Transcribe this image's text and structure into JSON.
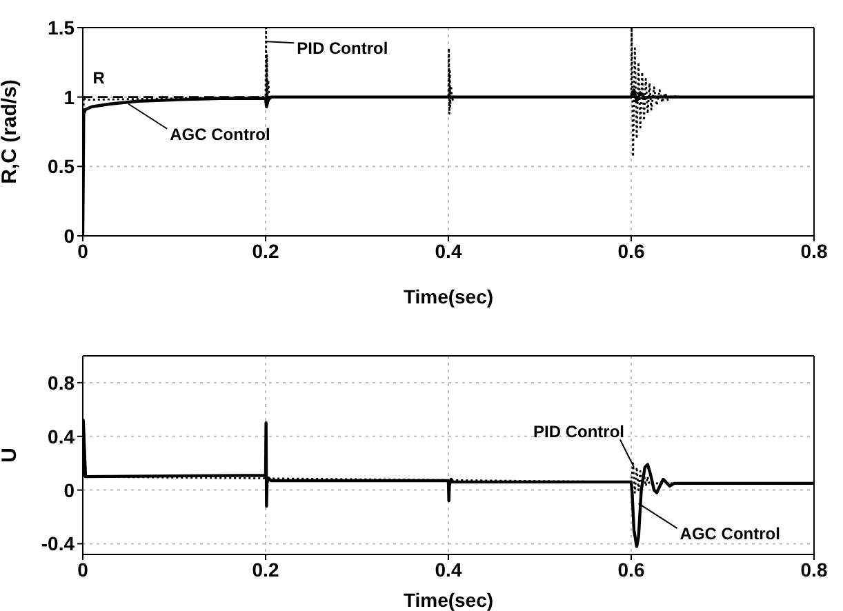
{
  "chart_data": [
    {
      "type": "line",
      "xlabel": "Time(sec)",
      "ylabel": "R,C (rad/s)",
      "xlim": [
        0,
        0.8
      ],
      "ylim": [
        0,
        1.5
      ],
      "xticks": [
        0,
        0.2,
        0.4,
        0.6,
        0.8
      ],
      "yticks": [
        0,
        0.5,
        1,
        1.5
      ],
      "grid": true,
      "marker": "none",
      "annotations": [
        {
          "text": "R",
          "x": 0.02,
          "y": 1.0
        },
        {
          "text": "PID Control",
          "x": 0.201,
          "y": 1.4
        },
        {
          "text": "AGC Control",
          "x": 0.05,
          "y": 0.95
        }
      ],
      "series": [
        {
          "color": "#000000",
          "line_style": "dashed",
          "x": [
            0,
            0.8
          ],
          "values": [
            1,
            1
          ]
        },
        {
          "color": "#000000",
          "line_style": "dotted",
          "x": [
            0,
            0.001,
            0.003,
            0.2,
            0.2005,
            0.201,
            0.2015,
            0.202,
            0.203,
            0.204,
            0.205,
            0.4,
            0.4005,
            0.401,
            0.4015,
            0.402,
            0.403,
            0.404,
            0.406,
            0.6,
            0.6005,
            0.602,
            0.604,
            0.606,
            0.608,
            0.61,
            0.612,
            0.614,
            0.616,
            0.618,
            0.62,
            0.622,
            0.625,
            0.628,
            0.631,
            0.634,
            0.637,
            0.64,
            0.645,
            0.65,
            0.8
          ],
          "values": [
            0,
            1.0,
            0.98,
            1.0,
            1.5,
            0.95,
            1.3,
            0.97,
            1.12,
            0.99,
            1.0,
            1.0,
            1.35,
            0.88,
            1.2,
            0.93,
            1.08,
            0.97,
            1.0,
            1.0,
            1.5,
            0.57,
            1.35,
            0.7,
            1.25,
            0.78,
            1.18,
            0.83,
            1.13,
            0.88,
            1.1,
            0.91,
            1.07,
            0.94,
            1.05,
            0.96,
            1.03,
            0.98,
            1.01,
            1.0,
            1.0
          ]
        },
        {
          "color": "#000000",
          "line_style": "solid",
          "x": [
            0,
            0.001,
            0.003,
            0.01,
            0.03,
            0.06,
            0.1,
            0.15,
            0.2,
            0.201,
            0.203,
            0.206,
            0.4,
            0.6,
            0.603,
            0.606,
            0.61,
            0.615,
            0.62,
            0.8
          ],
          "values": [
            0,
            0.88,
            0.91,
            0.93,
            0.95,
            0.97,
            0.98,
            0.99,
            0.99,
            0.93,
            0.98,
            1.0,
            1.0,
            1.0,
            1.05,
            0.97,
            1.03,
            0.99,
            1.0,
            1.0
          ]
        }
      ]
    },
    {
      "type": "line",
      "xlabel": "Time(sec)",
      "ylabel": "U",
      "xlim": [
        0,
        0.8
      ],
      "ylim": [
        -0.48,
        1.0
      ],
      "xticks": [
        0,
        0.2,
        0.4,
        0.6,
        0.8
      ],
      "yticks": [
        -0.4,
        0,
        0.4,
        0.8
      ],
      "grid": true,
      "marker": "none",
      "annotations": [
        {
          "text": "PID Control",
          "x": 0.603,
          "y": 0.17
        },
        {
          "text": "AGC Control",
          "x": 0.608,
          "y": -0.1
        }
      ],
      "series": [
        {
          "color": "#000000",
          "line_style": "dotted",
          "x": [
            0,
            0.001,
            0.003,
            0.6,
            0.602,
            0.604,
            0.606,
            0.608,
            0.61,
            0.612,
            0.614,
            0.616,
            0.618,
            0.62,
            0.625,
            0.8
          ],
          "values": [
            0.1,
            0.5,
            0.1,
            0.06,
            0.2,
            -0.02,
            0.17,
            0.0,
            0.14,
            0.02,
            0.12,
            0.03,
            0.1,
            0.04,
            0.05,
            0.05
          ]
        },
        {
          "color": "#000000",
          "line_style": "solid",
          "x": [
            0,
            0.0005,
            0.003,
            0.2,
            0.2005,
            0.201,
            0.2015,
            0.203,
            0.206,
            0.4,
            0.4005,
            0.401,
            0.403,
            0.405,
            0.41,
            0.6,
            0.601,
            0.603,
            0.606,
            0.608,
            0.611,
            0.615,
            0.618,
            0.621,
            0.625,
            0.628,
            0.632,
            0.635,
            0.638,
            0.642,
            0.647,
            0.655,
            0.8
          ],
          "values": [
            0.1,
            0.52,
            0.1,
            0.11,
            0.5,
            -0.12,
            0.05,
            0.09,
            0.07,
            0.07,
            -0.08,
            0.03,
            0.08,
            0.06,
            0.06,
            0.06,
            -0.02,
            -0.3,
            -0.42,
            -0.35,
            0.0,
            0.17,
            0.19,
            0.12,
            0.0,
            -0.02,
            0.04,
            0.08,
            0.06,
            0.03,
            0.05,
            0.05,
            0.05
          ]
        }
      ]
    }
  ]
}
